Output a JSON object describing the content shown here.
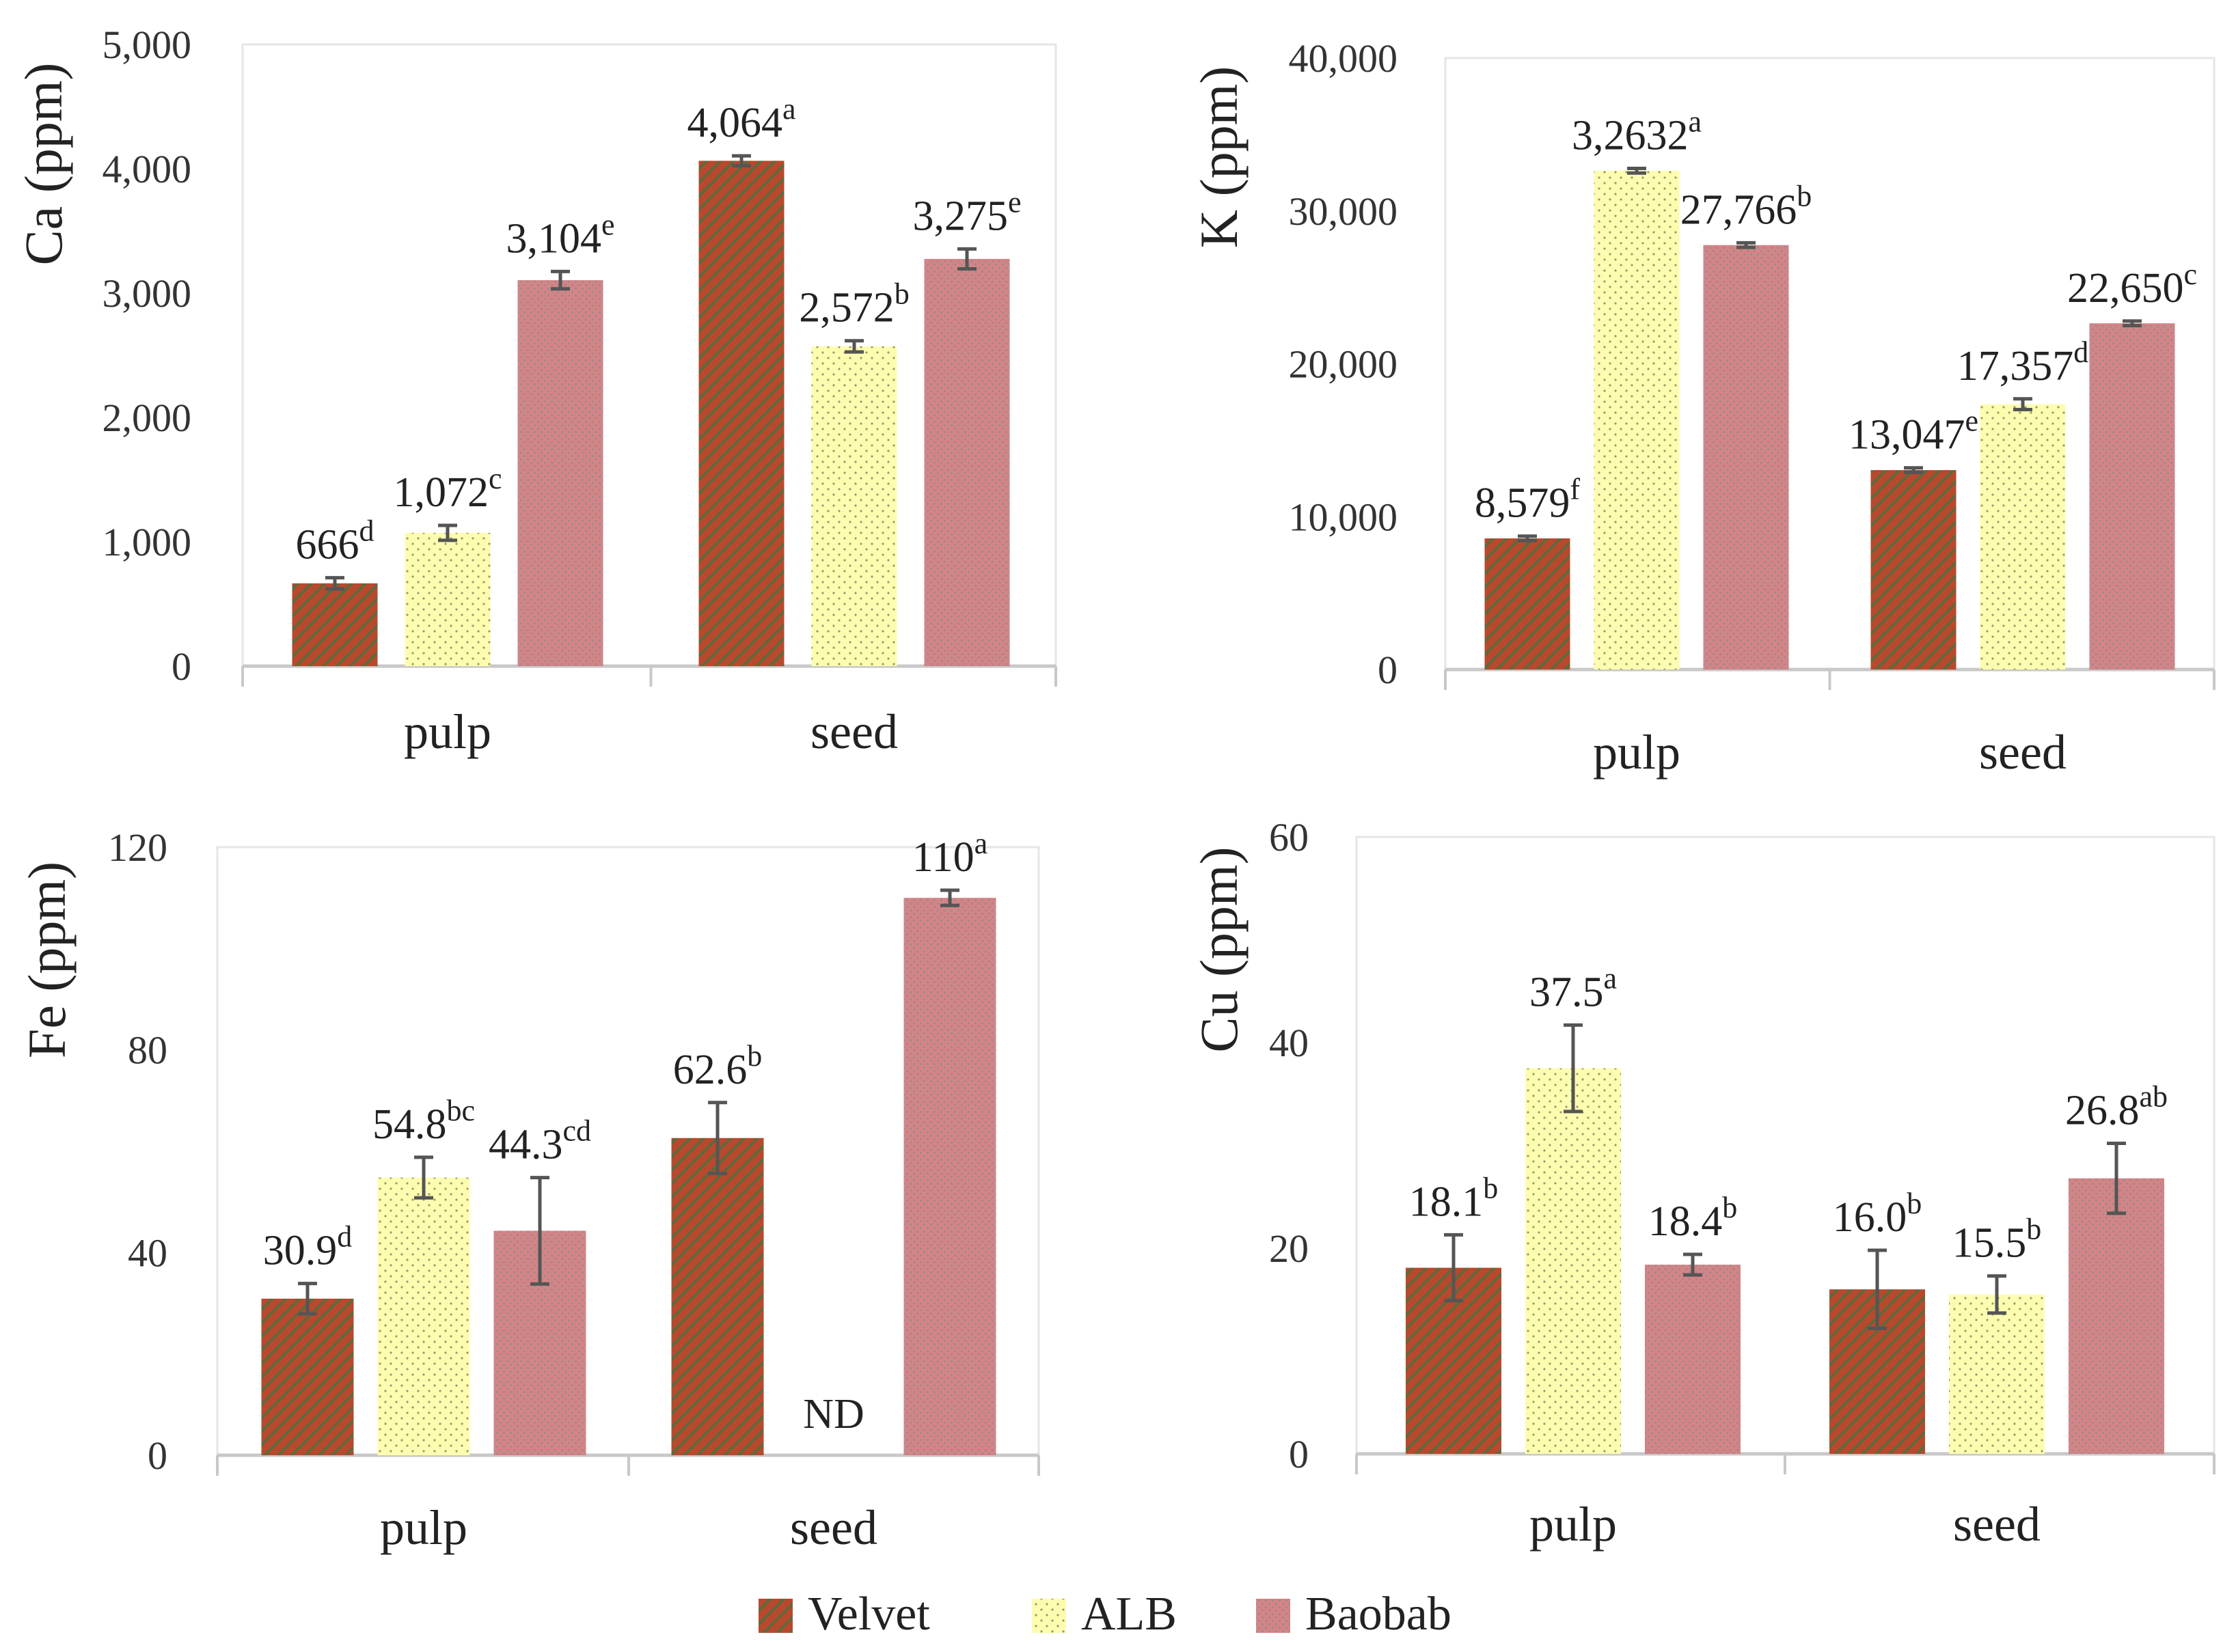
{
  "legend": {
    "items": [
      {
        "name": "Velvet",
        "pattern": "velvet"
      },
      {
        "name": "ALB",
        "pattern": "alb"
      },
      {
        "name": "Baobab",
        "pattern": "baobab"
      }
    ]
  },
  "colors": {
    "velvet_base": "#b8492c",
    "velvet_stripe": "#5e6a3e",
    "alb_base": "#fdfdb0",
    "alb_dot": "#9a9a6a",
    "baobab_base": "#d48486",
    "baobab_dot": "#9a8a8c",
    "error_bar": "#555555",
    "axis": "#c8c8c8"
  },
  "chart_data": [
    {
      "type": "bar",
      "panel": "Ca",
      "ylabel": "Ca (ppm)",
      "categories": [
        "pulp",
        "seed"
      ],
      "ylim": [
        0,
        5000
      ],
      "yticks": [
        0,
        1000,
        2000,
        3000,
        4000,
        5000
      ],
      "ytick_labels": [
        "0",
        "1,000",
        "2,000",
        "3,000",
        "4,000",
        "5,000"
      ],
      "series": [
        {
          "name": "Velvet",
          "values": [
            666,
            4064
          ],
          "errors": [
            45,
            40
          ],
          "labels": [
            "666",
            "4,064"
          ],
          "letters": [
            "d",
            "a"
          ]
        },
        {
          "name": "ALB",
          "values": [
            1072,
            2572
          ],
          "errors": [
            60,
            45
          ],
          "labels": [
            "1,072",
            "2,572"
          ],
          "letters": [
            "c",
            "b"
          ]
        },
        {
          "name": "Baobab",
          "values": [
            3104,
            3275
          ],
          "errors": [
            70,
            80
          ],
          "labels": [
            "3,104",
            "3,275"
          ],
          "letters": [
            "e",
            "e"
          ]
        }
      ]
    },
    {
      "type": "bar",
      "panel": "K",
      "ylabel": "K (ppm)",
      "categories": [
        "pulp",
        "seed"
      ],
      "ylim": [
        0,
        40000
      ],
      "yticks": [
        0,
        10000,
        20000,
        30000,
        40000
      ],
      "ytick_labels": [
        "0",
        "10,000",
        "20,000",
        "30,000",
        "40,000"
      ],
      "series": [
        {
          "name": "Velvet",
          "values": [
            8579,
            13047
          ],
          "errors": [
            150,
            150
          ],
          "labels": [
            "8,579",
            "13,047"
          ],
          "letters": [
            "f",
            "e"
          ]
        },
        {
          "name": "ALB",
          "values": [
            32632,
            17357
          ],
          "errors": [
            150,
            350
          ],
          "labels": [
            "3,2632",
            "17,357"
          ],
          "letters": [
            "a",
            "d"
          ]
        },
        {
          "name": "Baobab",
          "values": [
            27766,
            22650
          ],
          "errors": [
            150,
            150
          ],
          "labels": [
            "27,766",
            "22,650"
          ],
          "letters": [
            "b",
            "c"
          ]
        }
      ]
    },
    {
      "type": "bar",
      "panel": "Fe",
      "ylabel": "Fe (ppm)",
      "categories": [
        "pulp",
        "seed"
      ],
      "ylim": [
        0,
        120
      ],
      "yticks": [
        0,
        40,
        80,
        120
      ],
      "ytick_labels": [
        "0",
        "40",
        "80",
        "120"
      ],
      "series": [
        {
          "name": "Velvet",
          "values": [
            30.9,
            62.6
          ],
          "errors": [
            3,
            7
          ],
          "labels": [
            "30.9",
            "62.6"
          ],
          "letters": [
            "d",
            "b"
          ]
        },
        {
          "name": "ALB",
          "values": [
            54.8,
            null
          ],
          "errors": [
            4,
            null
          ],
          "labels": [
            "54.8",
            "ND"
          ],
          "letters": [
            "bc",
            ""
          ]
        },
        {
          "name": "Baobab",
          "values": [
            44.3,
            110
          ],
          "errors": [
            10.5,
            1.5
          ],
          "labels": [
            "44.3",
            "110"
          ],
          "letters": [
            "cd",
            "a"
          ]
        }
      ]
    },
    {
      "type": "bar",
      "panel": "Cu",
      "ylabel": "Cu (ppm)",
      "categories": [
        "pulp",
        "seed"
      ],
      "ylim": [
        0,
        60
      ],
      "yticks": [
        0,
        20,
        40,
        60
      ],
      "ytick_labels": [
        "0",
        "20",
        "40",
        "60"
      ],
      "series": [
        {
          "name": "Velvet",
          "values": [
            18.1,
            16.0
          ],
          "errors": [
            3.2,
            3.8
          ],
          "labels": [
            "18.1",
            "16.0"
          ],
          "letters": [
            "b",
            "b"
          ]
        },
        {
          "name": "ALB",
          "values": [
            37.5,
            15.5
          ],
          "errors": [
            4.2,
            1.8
          ],
          "labels": [
            "37.5",
            "15.5"
          ],
          "letters": [
            "a",
            "b"
          ]
        },
        {
          "name": "Baobab",
          "values": [
            18.4,
            26.8
          ],
          "errors": [
            1.0,
            3.4
          ],
          "labels": [
            "18.4",
            "26.8"
          ],
          "letters": [
            "b",
            "ab"
          ]
        }
      ]
    }
  ]
}
